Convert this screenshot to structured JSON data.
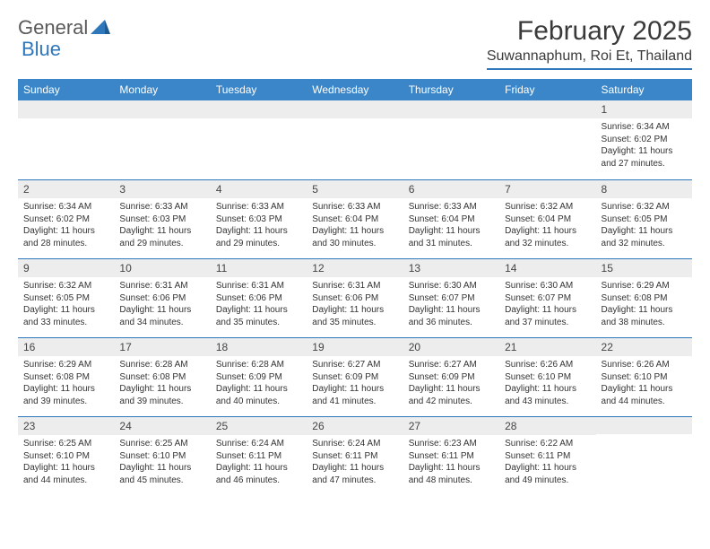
{
  "brand": {
    "general": "General",
    "blue": "Blue"
  },
  "title": "February 2025",
  "location": "Suwannaphum, Roi Et, Thailand",
  "colors": {
    "header_bg": "#3a86c8",
    "header_text": "#ffffff",
    "accent": "#2f77bb",
    "daynum_bg": "#ededed",
    "text": "#333333",
    "page_bg": "#ffffff"
  },
  "weekdays": [
    "Sunday",
    "Monday",
    "Tuesday",
    "Wednesday",
    "Thursday",
    "Friday",
    "Saturday"
  ],
  "weeks": [
    [
      null,
      null,
      null,
      null,
      null,
      null,
      {
        "n": "1",
        "sr": "6:34 AM",
        "ss": "6:02 PM",
        "dl": "11 hours and 27 minutes."
      }
    ],
    [
      {
        "n": "2",
        "sr": "6:34 AM",
        "ss": "6:02 PM",
        "dl": "11 hours and 28 minutes."
      },
      {
        "n": "3",
        "sr": "6:33 AM",
        "ss": "6:03 PM",
        "dl": "11 hours and 29 minutes."
      },
      {
        "n": "4",
        "sr": "6:33 AM",
        "ss": "6:03 PM",
        "dl": "11 hours and 29 minutes."
      },
      {
        "n": "5",
        "sr": "6:33 AM",
        "ss": "6:04 PM",
        "dl": "11 hours and 30 minutes."
      },
      {
        "n": "6",
        "sr": "6:33 AM",
        "ss": "6:04 PM",
        "dl": "11 hours and 31 minutes."
      },
      {
        "n": "7",
        "sr": "6:32 AM",
        "ss": "6:04 PM",
        "dl": "11 hours and 32 minutes."
      },
      {
        "n": "8",
        "sr": "6:32 AM",
        "ss": "6:05 PM",
        "dl": "11 hours and 32 minutes."
      }
    ],
    [
      {
        "n": "9",
        "sr": "6:32 AM",
        "ss": "6:05 PM",
        "dl": "11 hours and 33 minutes."
      },
      {
        "n": "10",
        "sr": "6:31 AM",
        "ss": "6:06 PM",
        "dl": "11 hours and 34 minutes."
      },
      {
        "n": "11",
        "sr": "6:31 AM",
        "ss": "6:06 PM",
        "dl": "11 hours and 35 minutes."
      },
      {
        "n": "12",
        "sr": "6:31 AM",
        "ss": "6:06 PM",
        "dl": "11 hours and 35 minutes."
      },
      {
        "n": "13",
        "sr": "6:30 AM",
        "ss": "6:07 PM",
        "dl": "11 hours and 36 minutes."
      },
      {
        "n": "14",
        "sr": "6:30 AM",
        "ss": "6:07 PM",
        "dl": "11 hours and 37 minutes."
      },
      {
        "n": "15",
        "sr": "6:29 AM",
        "ss": "6:08 PM",
        "dl": "11 hours and 38 minutes."
      }
    ],
    [
      {
        "n": "16",
        "sr": "6:29 AM",
        "ss": "6:08 PM",
        "dl": "11 hours and 39 minutes."
      },
      {
        "n": "17",
        "sr": "6:28 AM",
        "ss": "6:08 PM",
        "dl": "11 hours and 39 minutes."
      },
      {
        "n": "18",
        "sr": "6:28 AM",
        "ss": "6:09 PM",
        "dl": "11 hours and 40 minutes."
      },
      {
        "n": "19",
        "sr": "6:27 AM",
        "ss": "6:09 PM",
        "dl": "11 hours and 41 minutes."
      },
      {
        "n": "20",
        "sr": "6:27 AM",
        "ss": "6:09 PM",
        "dl": "11 hours and 42 minutes."
      },
      {
        "n": "21",
        "sr": "6:26 AM",
        "ss": "6:10 PM",
        "dl": "11 hours and 43 minutes."
      },
      {
        "n": "22",
        "sr": "6:26 AM",
        "ss": "6:10 PM",
        "dl": "11 hours and 44 minutes."
      }
    ],
    [
      {
        "n": "23",
        "sr": "6:25 AM",
        "ss": "6:10 PM",
        "dl": "11 hours and 44 minutes."
      },
      {
        "n": "24",
        "sr": "6:25 AM",
        "ss": "6:10 PM",
        "dl": "11 hours and 45 minutes."
      },
      {
        "n": "25",
        "sr": "6:24 AM",
        "ss": "6:11 PM",
        "dl": "11 hours and 46 minutes."
      },
      {
        "n": "26",
        "sr": "6:24 AM",
        "ss": "6:11 PM",
        "dl": "11 hours and 47 minutes."
      },
      {
        "n": "27",
        "sr": "6:23 AM",
        "ss": "6:11 PM",
        "dl": "11 hours and 48 minutes."
      },
      {
        "n": "28",
        "sr": "6:22 AM",
        "ss": "6:11 PM",
        "dl": "11 hours and 49 minutes."
      },
      null
    ]
  ],
  "labels": {
    "sunrise": "Sunrise: ",
    "sunset": "Sunset: ",
    "daylight": "Daylight: "
  }
}
